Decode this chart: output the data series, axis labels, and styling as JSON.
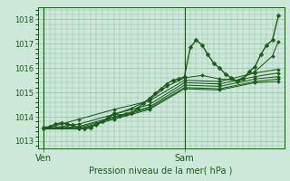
{
  "bg_color": "#cbe8d8",
  "grid_color": "#99bbaa",
  "line_color": "#1a5c1a",
  "marker_color": "#1a5c1a",
  "xlabel": "Pression niveau de la mer( hPa )",
  "yticks": [
    1013,
    1014,
    1015,
    1016,
    1017,
    1018
  ],
  "ylim": [
    1012.7,
    1018.5
  ],
  "ven_x": 0.0,
  "sam_x": 24.0,
  "xlim": [
    -1,
    41
  ],
  "series": [
    [
      0.0,
      1013.55,
      1.0,
      1013.6,
      2.0,
      1013.7,
      3.0,
      1013.75,
      4.0,
      1013.7,
      5.0,
      1013.65,
      6.0,
      1013.55,
      7.0,
      1013.5,
      8.0,
      1013.55,
      9.0,
      1013.7,
      10.0,
      1013.8,
      11.0,
      1013.95,
      12.0,
      1014.15,
      13.0,
      1014.05,
      14.0,
      1014.1,
      15.0,
      1014.15,
      16.0,
      1014.35,
      17.0,
      1014.55,
      18.0,
      1014.75,
      19.0,
      1014.95,
      20.0,
      1015.15,
      21.0,
      1015.35,
      22.0,
      1015.5,
      23.0,
      1015.55,
      24.0,
      1015.65,
      25.0,
      1016.85,
      26.0,
      1017.15,
      27.0,
      1016.95,
      28.0,
      1016.55,
      29.0,
      1016.2,
      30.0,
      1016.0,
      31.0,
      1015.75,
      32.0,
      1015.6,
      33.0,
      1015.45,
      34.0,
      1015.55,
      35.0,
      1015.85,
      36.0,
      1016.05,
      37.0,
      1016.55,
      38.0,
      1016.95,
      39.0,
      1017.15,
      40.0,
      1018.15
    ],
    [
      0.0,
      1013.5,
      3.0,
      1013.55,
      6.0,
      1013.5,
      9.0,
      1013.65,
      12.0,
      1014.1,
      15.0,
      1014.35,
      18.0,
      1014.7,
      21.0,
      1015.25,
      24.0,
      1015.6,
      27.0,
      1015.7,
      30.0,
      1015.55,
      33.0,
      1015.5,
      36.0,
      1015.85,
      39.0,
      1016.5,
      40.0,
      1017.1
    ],
    [
      0.0,
      1013.5,
      6.0,
      1013.9,
      12.0,
      1014.3,
      18.0,
      1014.65,
      24.0,
      1015.5,
      30.0,
      1015.45,
      36.0,
      1015.8,
      40.0,
      1015.95
    ],
    [
      0.0,
      1013.5,
      6.0,
      1013.7,
      12.0,
      1014.1,
      18.0,
      1014.5,
      24.0,
      1015.4,
      30.0,
      1015.35,
      36.0,
      1015.65,
      40.0,
      1015.8
    ],
    [
      0.0,
      1013.5,
      6.0,
      1013.6,
      12.0,
      1014.0,
      18.0,
      1014.4,
      24.0,
      1015.3,
      30.0,
      1015.25,
      36.0,
      1015.55,
      40.0,
      1015.65
    ],
    [
      0.0,
      1013.5,
      6.0,
      1013.55,
      12.0,
      1013.95,
      18.0,
      1014.35,
      24.0,
      1015.2,
      30.0,
      1015.15,
      36.0,
      1015.45,
      40.0,
      1015.55
    ],
    [
      0.0,
      1013.5,
      6.0,
      1013.5,
      12.0,
      1013.9,
      18.0,
      1014.3,
      24.0,
      1015.15,
      30.0,
      1015.1,
      36.0,
      1015.4,
      40.0,
      1015.45
    ]
  ]
}
